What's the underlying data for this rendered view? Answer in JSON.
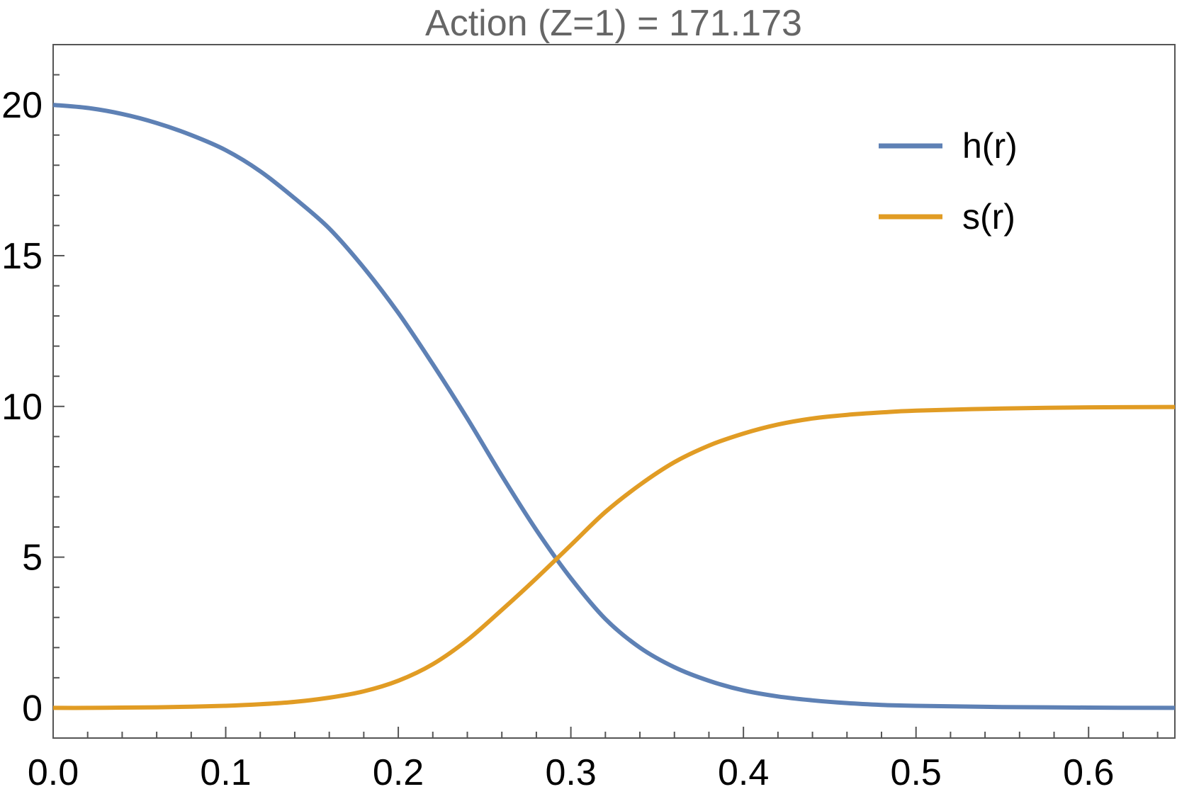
{
  "chart_data": {
    "type": "line",
    "title": "Action (Z=1) = 171.173",
    "xlabel": "",
    "ylabel": "",
    "xlim": [
      0.0,
      0.65
    ],
    "ylim": [
      -1.0,
      22.0
    ],
    "x_ticks": [
      "0.0",
      "0.1",
      "0.2",
      "0.3",
      "0.4",
      "0.5",
      "0.6"
    ],
    "y_ticks": [
      "0",
      "5",
      "10",
      "15",
      "20"
    ],
    "grid": false,
    "legend_position": "top-right",
    "series": [
      {
        "name": "h(r)",
        "color": "#5E81B5",
        "x": [
          0.0,
          0.02,
          0.04,
          0.06,
          0.08,
          0.1,
          0.12,
          0.14,
          0.16,
          0.18,
          0.2,
          0.22,
          0.24,
          0.26,
          0.28,
          0.3,
          0.32,
          0.34,
          0.36,
          0.38,
          0.4,
          0.42,
          0.44,
          0.46,
          0.48,
          0.5,
          0.55,
          0.6,
          0.65
        ],
        "y": [
          20.0,
          19.9,
          19.7,
          19.4,
          19.0,
          18.5,
          17.8,
          16.9,
          15.9,
          14.6,
          13.1,
          11.4,
          9.6,
          7.7,
          5.9,
          4.3,
          2.95,
          2.0,
          1.35,
          0.9,
          0.58,
          0.38,
          0.25,
          0.16,
          0.1,
          0.07,
          0.03,
          0.01,
          0.0
        ]
      },
      {
        "name": "s(r)",
        "color": "#E19C24",
        "x": [
          0.0,
          0.02,
          0.04,
          0.06,
          0.08,
          0.1,
          0.12,
          0.14,
          0.16,
          0.18,
          0.2,
          0.22,
          0.24,
          0.26,
          0.28,
          0.3,
          0.32,
          0.34,
          0.36,
          0.38,
          0.4,
          0.42,
          0.44,
          0.46,
          0.48,
          0.5,
          0.55,
          0.6,
          0.65
        ],
        "y": [
          0.0,
          0.0,
          0.01,
          0.02,
          0.04,
          0.07,
          0.12,
          0.2,
          0.34,
          0.55,
          0.9,
          1.45,
          2.25,
          3.25,
          4.3,
          5.4,
          6.5,
          7.4,
          8.15,
          8.7,
          9.1,
          9.4,
          9.6,
          9.72,
          9.8,
          9.86,
          9.93,
          9.97,
          9.98
        ]
      }
    ]
  }
}
